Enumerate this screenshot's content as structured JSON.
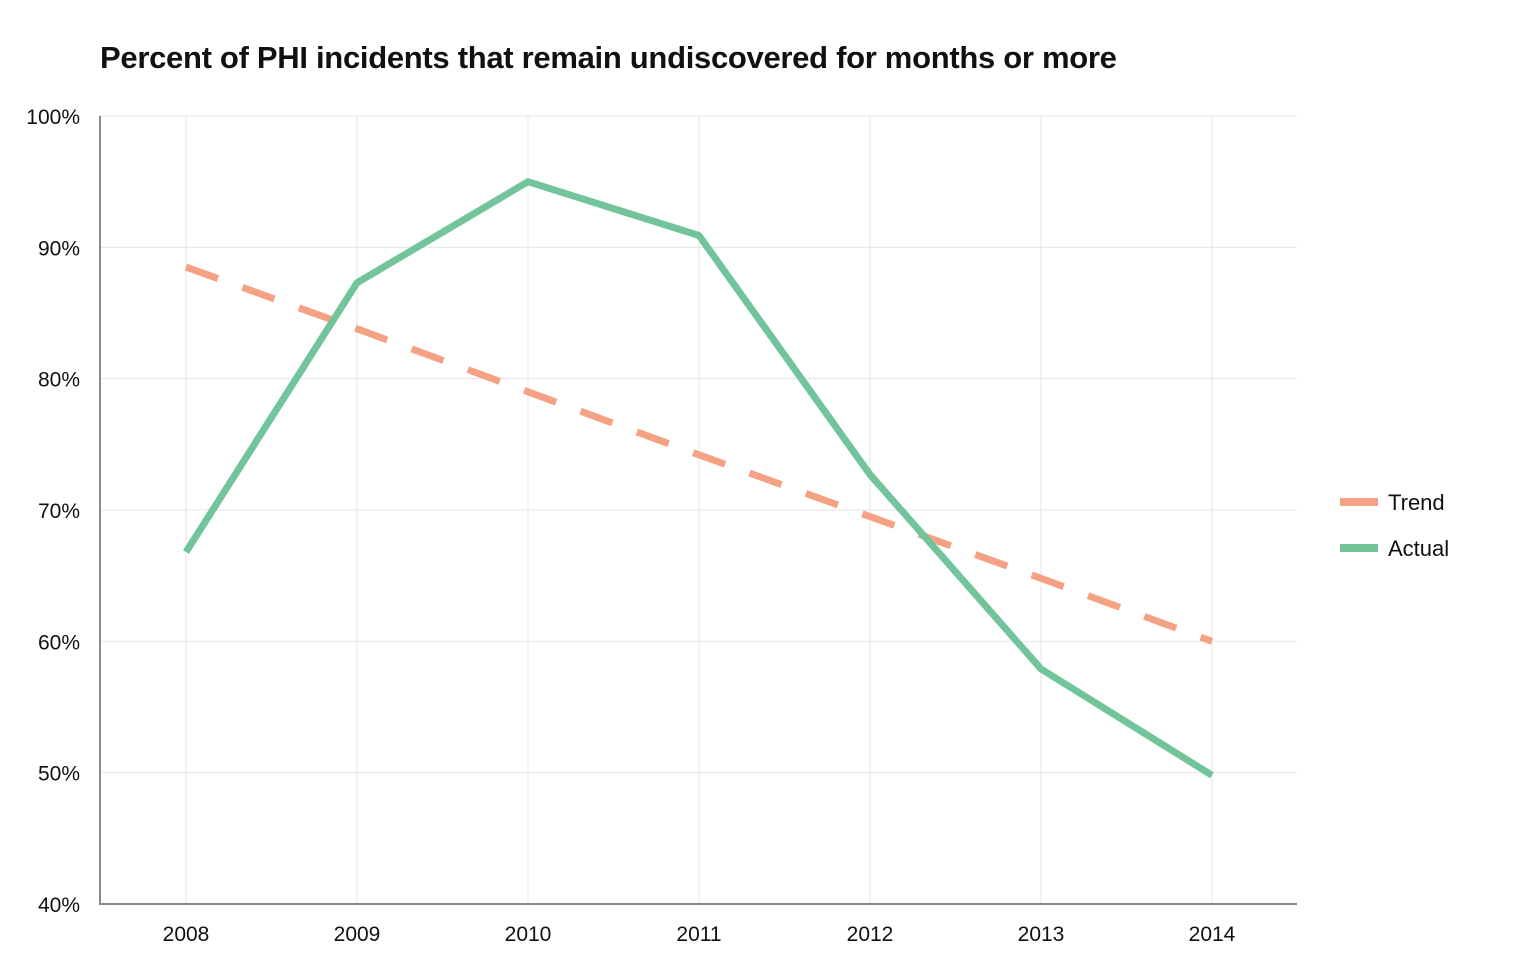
{
  "chart_data": {
    "type": "line",
    "title": "Percent of PHI incidents that remain undiscovered for months or more",
    "xlabel": "",
    "ylabel": "",
    "x": [
      "2008",
      "2009",
      "2010",
      "2011",
      "2012",
      "2013",
      "2014"
    ],
    "ylim": [
      40,
      100
    ],
    "yticks": [
      40,
      50,
      60,
      70,
      80,
      90,
      100
    ],
    "ytick_labels": [
      "40%",
      "50%",
      "60%",
      "70%",
      "80%",
      "90%",
      "100%"
    ],
    "grid": true,
    "legend_position": "right",
    "series": [
      {
        "name": "Trend",
        "values": [
          88.5,
          83.8,
          79.0,
          74.2,
          69.5,
          64.8,
          60.0
        ],
        "color": "#f4a283",
        "style": "dashed"
      },
      {
        "name": "Actual",
        "values": [
          66.8,
          87.3,
          95.0,
          90.9,
          72.7,
          57.9,
          49.8
        ],
        "color": "#72c49a",
        "style": "solid"
      }
    ]
  }
}
